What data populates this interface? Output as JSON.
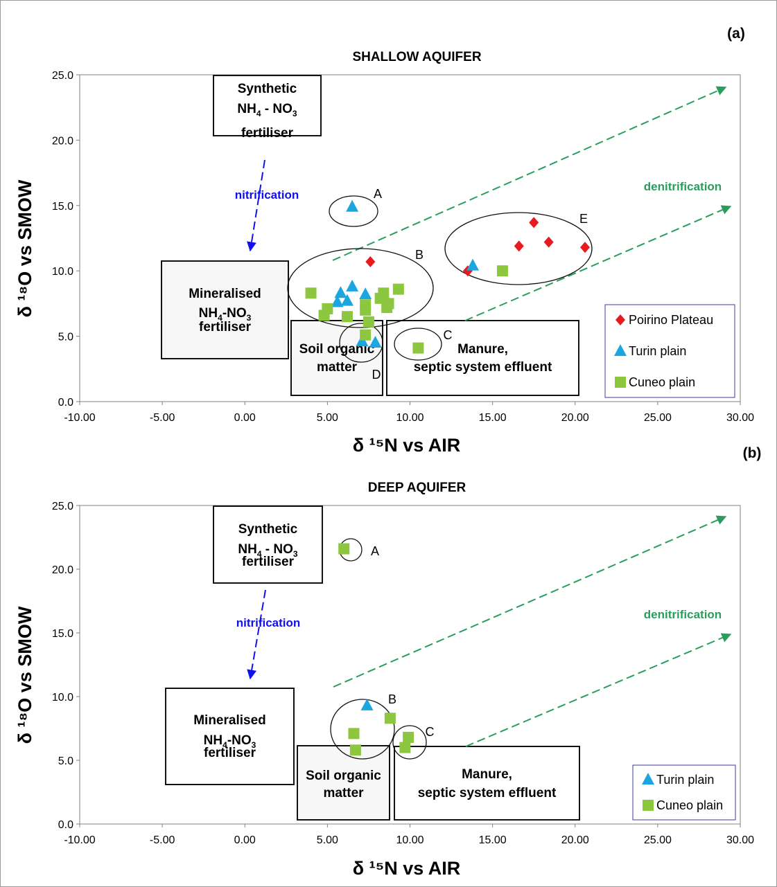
{
  "colors": {
    "poirino": "#e8191f",
    "turin": "#1ca6e0",
    "cuneo": "#8dc63f",
    "nitrification": "#1010ee",
    "denitrification": "#2a9d5c",
    "legend_border": "#3a3aa0"
  },
  "chart_data": [
    {
      "type": "scatter",
      "panel_label": "(a)",
      "title": "SHALLOW AQUIFER",
      "xlabel": "δ ¹⁵N vs AIR",
      "ylabel": "δ ¹⁸O vs SMOW",
      "xlim": [
        -10,
        30
      ],
      "ylim": [
        0,
        25
      ],
      "x_ticks": [
        "-10.00",
        "-5.00",
        "0.00",
        "5.00",
        "10.00",
        "15.00",
        "20.00",
        "25.00",
        "30.00"
      ],
      "y_ticks": [
        "0.0",
        "5.0",
        "10.0",
        "15.0",
        "20.0",
        "25.0"
      ],
      "grid": false,
      "legend_position": "bottom-right",
      "series": [
        {
          "name": "Poirino Plateau",
          "marker": "diamond",
          "x": [
            7.6,
            13.5,
            16.6,
            17.5,
            18.4,
            20.6
          ],
          "y": [
            10.7,
            10.0,
            11.9,
            13.7,
            12.2,
            11.8
          ]
        },
        {
          "name": "Turin plain",
          "marker": "triangle",
          "x": [
            6.5,
            5.6,
            5.8,
            6.2,
            6.5,
            7.3,
            13.8,
            7.1,
            7.9
          ],
          "y": [
            14.9,
            7.6,
            8.3,
            7.7,
            8.8,
            8.2,
            10.4,
            4.6,
            4.5
          ]
        },
        {
          "name": "Cuneo plain",
          "marker": "square",
          "x": [
            4.0,
            4.8,
            5.0,
            6.2,
            7.3,
            7.3,
            7.5,
            7.3,
            8.2,
            8.4,
            8.6,
            8.7,
            9.3,
            10.5,
            15.6
          ],
          "y": [
            8.3,
            6.6,
            7.1,
            6.5,
            7.4,
            7.0,
            6.1,
            5.1,
            7.9,
            8.3,
            7.2,
            7.5,
            8.6,
            4.1,
            10.0
          ]
        }
      ],
      "groups": [
        "A",
        "B",
        "C",
        "D",
        "E"
      ],
      "boxes": [
        {
          "line1": "Synthetic",
          "line2a": "NH",
          "sub2a": "4",
          "line2b": " - NO",
          "sub2b": "3",
          "line3": "fertiliser"
        },
        {
          "line1": "Mineralised",
          "line2a": "NH",
          "sub2a": "4",
          "line2b": "-NO",
          "sub2b": "3",
          "line3": "fertiliser"
        },
        {
          "line1": "Soil organic",
          "line2": "matter"
        },
        {
          "line1": "Manure,",
          "line2": "septic system effluent"
        }
      ],
      "annotations": {
        "nitrification": "nitrification",
        "denitrification": "denitrification"
      }
    },
    {
      "type": "scatter",
      "panel_label": "(b)",
      "title": "DEEP AQUIFER",
      "xlabel": "δ ¹⁵N vs AIR",
      "ylabel": "δ ¹⁸O vs SMOW",
      "xlim": [
        -10,
        30
      ],
      "ylim": [
        0,
        25
      ],
      "x_ticks": [
        "-10.00",
        "-5.00",
        "0.00",
        "5.00",
        "10.00",
        "15.00",
        "20.00",
        "25.00",
        "30.00"
      ],
      "y_ticks": [
        "0.0",
        "5.0",
        "10.0",
        "15.0",
        "20.0",
        "25.0"
      ],
      "grid": false,
      "legend_position": "bottom-right",
      "series": [
        {
          "name": "Turin plain",
          "marker": "triangle",
          "x": [
            7.4
          ],
          "y": [
            9.3
          ]
        },
        {
          "name": "Cuneo plain",
          "marker": "square",
          "x": [
            6.0,
            6.6,
            6.7,
            8.8,
            9.7,
            9.9
          ],
          "y": [
            21.6,
            7.1,
            5.8,
            8.3,
            6.0,
            6.8
          ]
        }
      ],
      "groups": [
        "A",
        "B",
        "C"
      ],
      "boxes": [
        {
          "line1": "Synthetic",
          "line2a": "NH",
          "sub2a": "4",
          "line2b": " - NO",
          "sub2b": "3",
          "line3": "fertiliser"
        },
        {
          "line1": "Mineralised",
          "line2a": "NH",
          "sub2a": "4",
          "line2b": "-NO",
          "sub2b": "3",
          "line3": "fertiliser"
        },
        {
          "line1": "Soil organic",
          "line2": "matter"
        },
        {
          "line1": "Manure,",
          "line2": "septic system effluent"
        }
      ],
      "annotations": {
        "nitrification": "nitrification",
        "denitrification": "denitrification"
      }
    }
  ]
}
